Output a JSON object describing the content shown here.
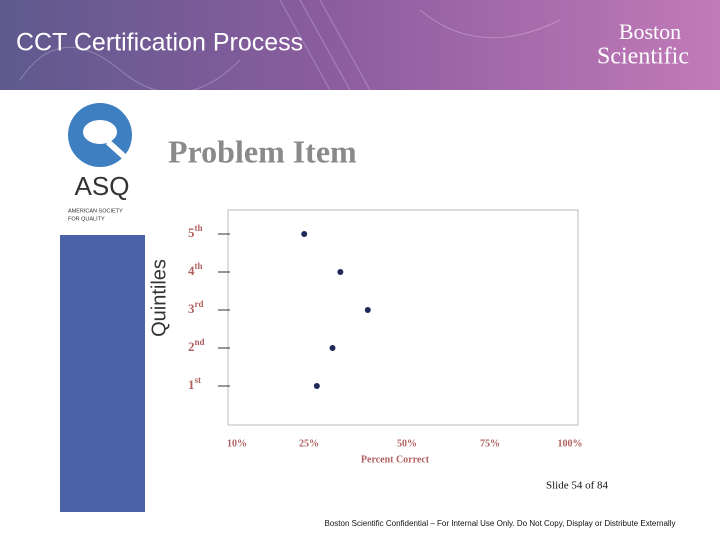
{
  "header": {
    "title": "CCT Certification Process",
    "logo": [
      "Boston",
      "Scientific"
    ]
  },
  "asq": {
    "mark": "ASQ",
    "name": [
      "AMERICAN SOCIETY",
      "FOR QUALITY"
    ]
  },
  "chart_data": {
    "type": "scatter",
    "title": "Problem Item",
    "y_label": "Quintiles",
    "x_label": "Percent Correct",
    "categories": [
      "5th",
      "4th",
      "3rd",
      "2nd",
      "1st"
    ],
    "values": [
      24,
      33,
      40,
      31,
      27
    ],
    "color": "#1f2a5a",
    "xlim": [
      10,
      100
    ],
    "xticks": [
      {
        "value": 10,
        "label": "10%"
      },
      {
        "value": 25,
        "label": "25%"
      },
      {
        "value": 50,
        "label": "50%"
      },
      {
        "value": 75,
        "label": "75%"
      },
      {
        "value": 100,
        "label": "100%"
      }
    ]
  },
  "slide_number": "Slide 54 of 84",
  "footer": "Boston Scientific Confidential – For Internal Use Only.  Do Not Copy, Display or Distribute Externally"
}
